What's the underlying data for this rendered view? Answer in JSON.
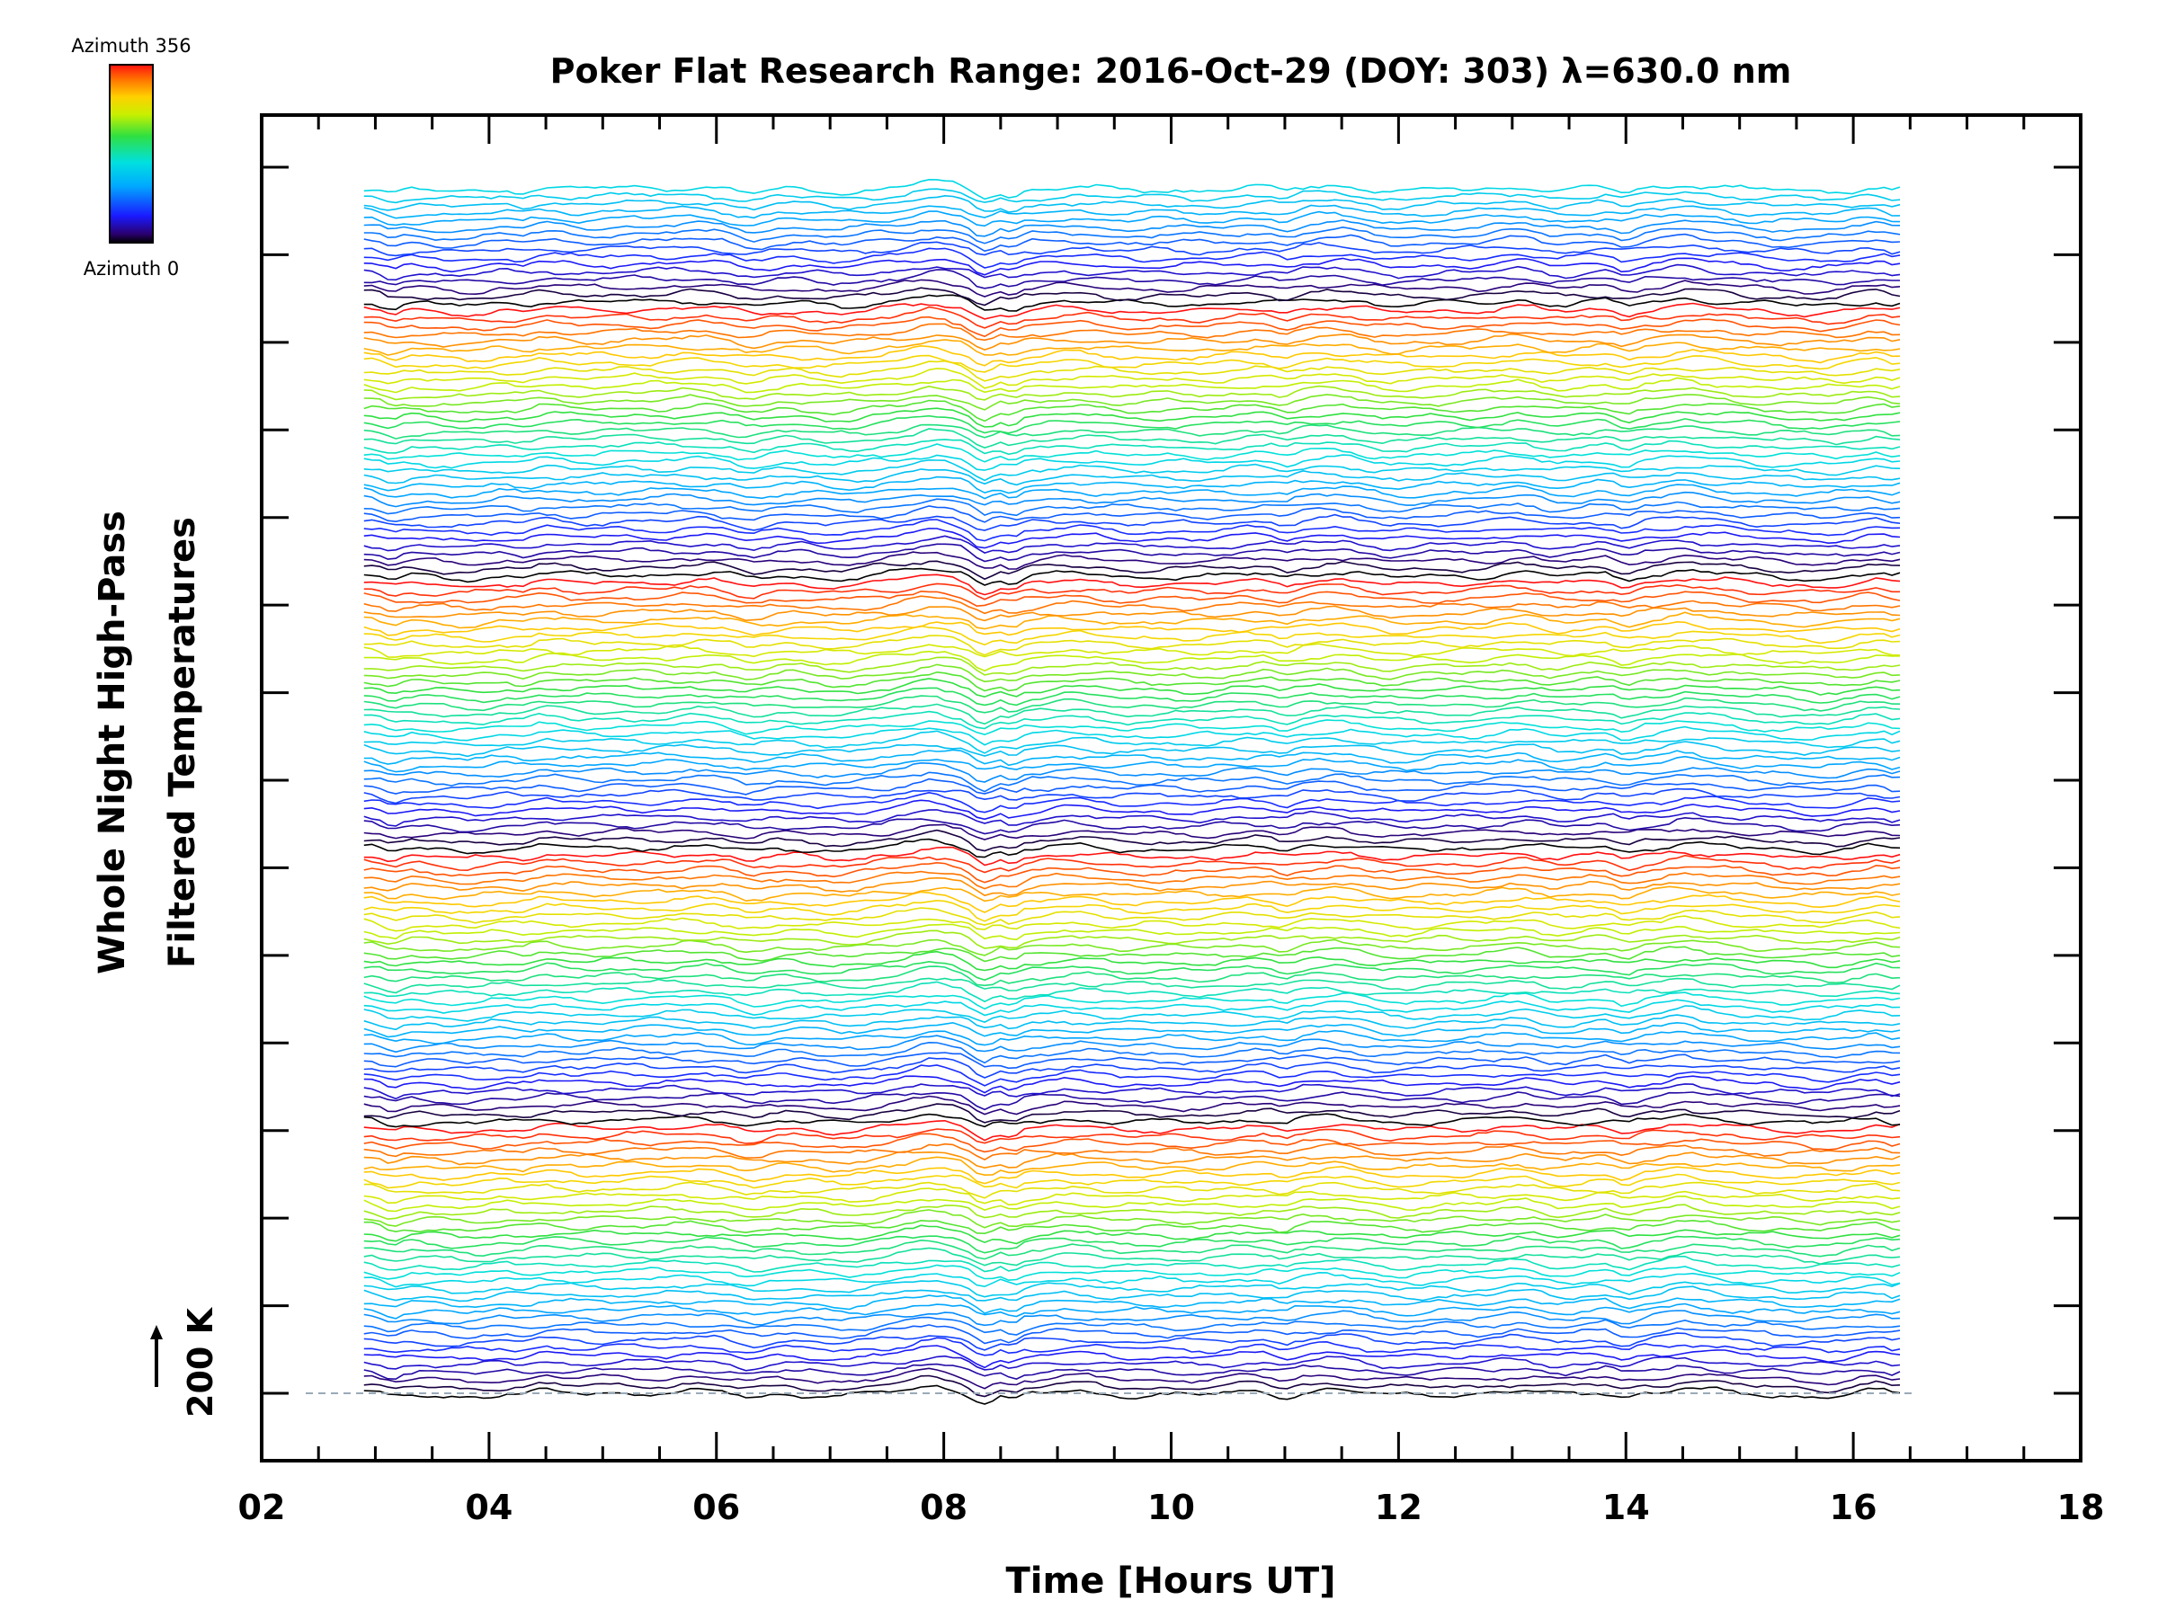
{
  "chart_data": {
    "type": "line",
    "title": "Poker Flat Research Range: 2016-Oct-29 (DOY: 303) λ=630.0 nm",
    "xlabel": "Time [Hours UT]",
    "ylabel_line1": "Whole Night High-Pass",
    "ylabel_line2": "Filtered Temperatures",
    "xlim": [
      2,
      18
    ],
    "x_ticks": [
      "02",
      "04",
      "06",
      "08",
      "10",
      "12",
      "14",
      "16",
      "18"
    ],
    "x_tick_values": [
      2,
      4,
      6,
      8,
      10,
      12,
      14,
      16,
      18
    ],
    "data_x_range": [
      2.9,
      16.45
    ],
    "scale_bar": {
      "label": "200 K",
      "value_K": 200
    },
    "colorbar": {
      "top_label": "Azimuth 356",
      "bottom_label": "Azimuth 0",
      "min": 0,
      "max": 356,
      "colormap": "rainbow"
    },
    "series_count": 160,
    "azimuth_cycle_length": 36,
    "baseline_style": "dashed",
    "grid": false
  },
  "colors": {
    "axis": "#000000",
    "baseline": "#9aaab8",
    "background": "#ffffff"
  }
}
